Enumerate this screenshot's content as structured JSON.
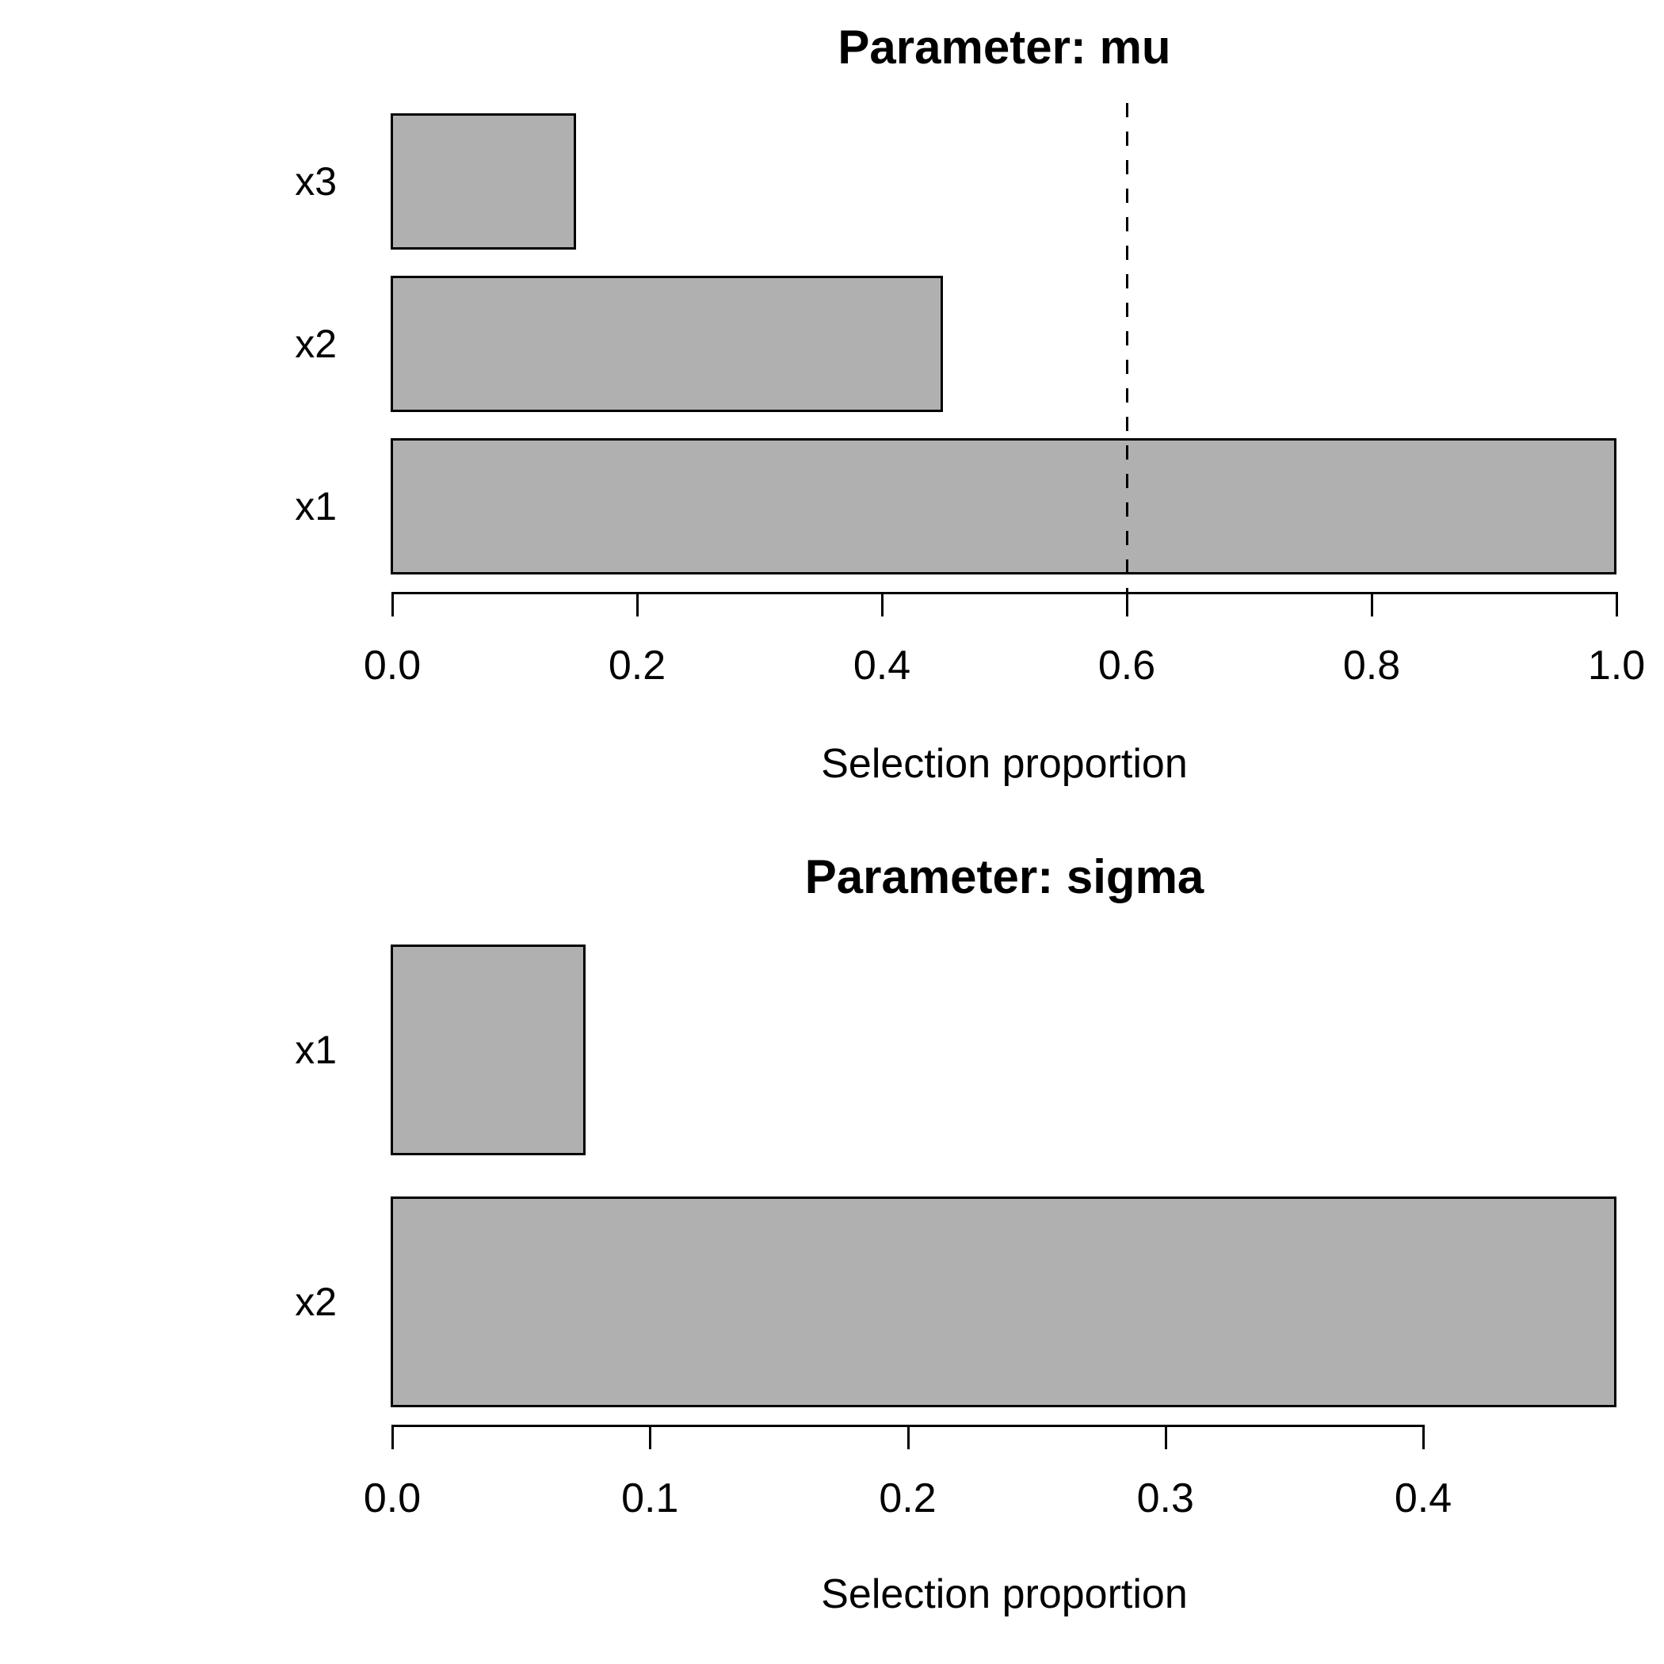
{
  "page": {
    "background": "#ffffff",
    "text_color": "#000000"
  },
  "chart_data": [
    {
      "type": "bar",
      "orientation": "horizontal",
      "title": "Parameter: mu",
      "xlabel": "Selection proportion",
      "categories": [
        "x3",
        "x2",
        "x1"
      ],
      "values": [
        0.15,
        0.45,
        1.0
      ],
      "xlim": [
        0,
        1.0
      ],
      "xticks": [
        0,
        0.2,
        0.4,
        0.6,
        0.8,
        1.0
      ],
      "xtick_labels": [
        "0.0",
        "0.2",
        "0.4",
        "0.6",
        "0.8",
        "1.0"
      ],
      "reference_line_x": 0.6,
      "reference_line_style": "dashed",
      "bar_fill": "#b0b0b0",
      "bar_border": "#000000",
      "grid": false,
      "legend": null
    },
    {
      "type": "bar",
      "orientation": "horizontal",
      "title": "Parameter: sigma",
      "xlabel": "Selection proportion",
      "categories": [
        "x1",
        "x2"
      ],
      "values": [
        0.075,
        0.475
      ],
      "xlim": [
        0,
        0.475
      ],
      "xticks": [
        0,
        0.1,
        0.2,
        0.3,
        0.4
      ],
      "xtick_labels": [
        "0.0",
        "0.1",
        "0.2",
        "0.3",
        "0.4"
      ],
      "reference_line_x": null,
      "reference_line_style": null,
      "bar_fill": "#b0b0b0",
      "bar_border": "#000000",
      "grid": false,
      "legend": null
    }
  ]
}
